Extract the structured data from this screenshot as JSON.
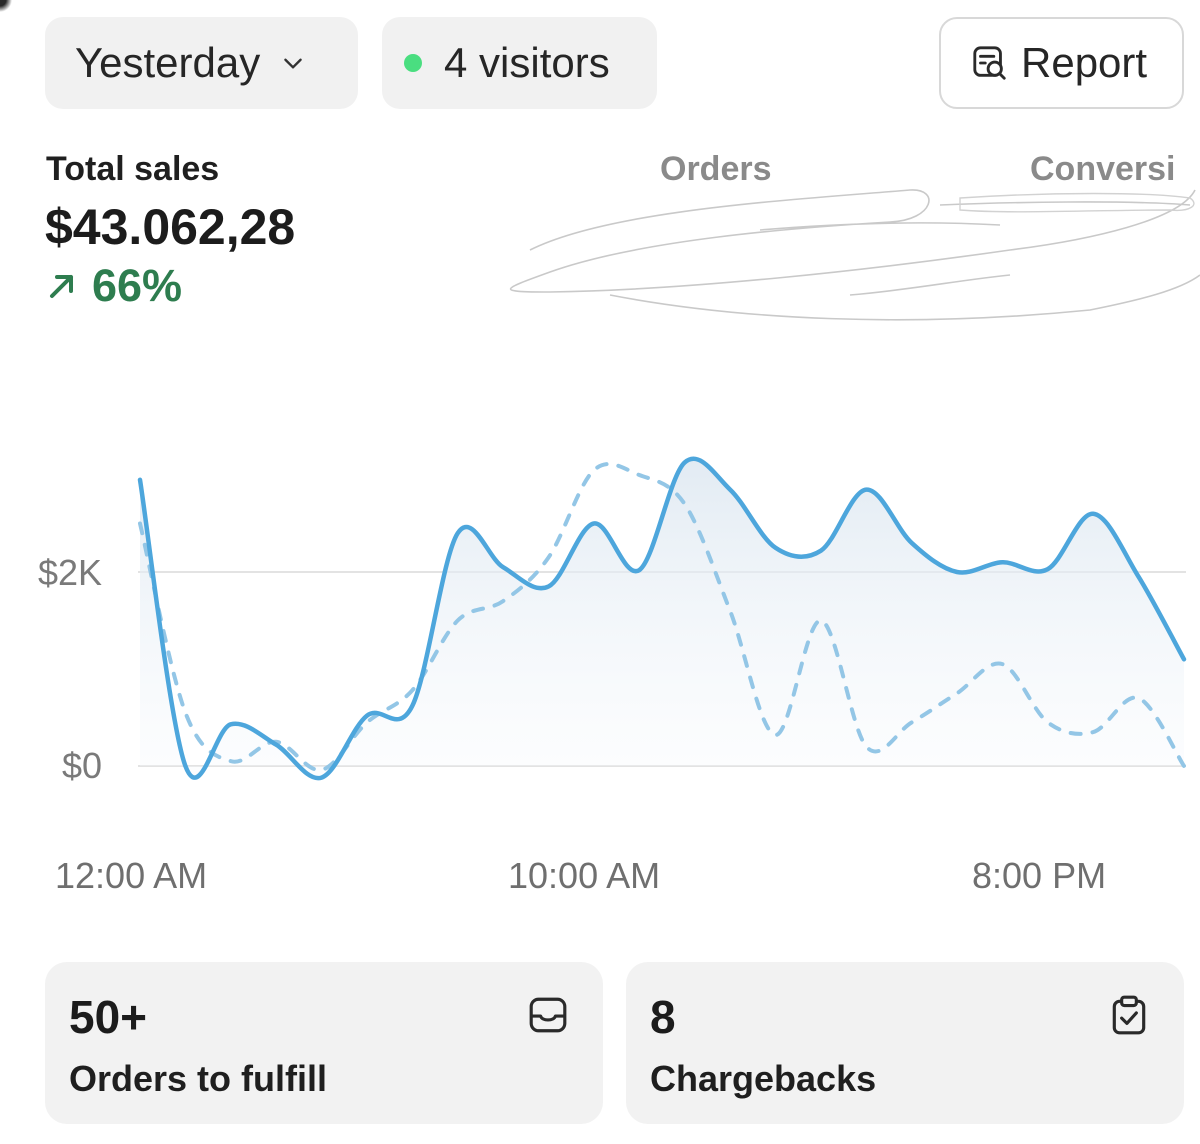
{
  "filters": {
    "date_range": "Yesterday",
    "visitors": "4 visitors",
    "visitors_dot_color": "#4ade80",
    "report_label": "Report"
  },
  "metrics": {
    "total_sales_label": "Total sales",
    "total_sales_value": "$43.062,28",
    "growth": "66%",
    "growth_color": "#2e7d4f",
    "orders_label": "Orders",
    "conversion_label": "Conversi"
  },
  "chart_data": {
    "type": "line",
    "x_ticks": [
      "12:00 AM",
      "10:00 AM",
      "8:00 PM"
    ],
    "y_ticks": [
      "$2K",
      "$0"
    ],
    "ylim": [
      0,
      3000
    ],
    "grid": true,
    "series": [
      {
        "role": "current",
        "color": "#4da6dc",
        "style": "solid",
        "values": [
          2950,
          0,
          430,
          220,
          -120,
          520,
          620,
          2400,
          2050,
          1850,
          2500,
          2020,
          3130,
          2850,
          2250,
          2220,
          2850,
          2300,
          2000,
          2100,
          2030,
          2600,
          1950,
          1100
        ]
      },
      {
        "role": "comparison",
        "color": "#93c6e6",
        "style": "dashed",
        "values": [
          2500,
          550,
          50,
          250,
          -40,
          450,
          780,
          1500,
          1700,
          2150,
          3050,
          3000,
          2700,
          1600,
          320,
          1500,
          200,
          450,
          750,
          1050,
          450,
          350,
          700,
          0
        ]
      }
    ]
  },
  "cards": [
    {
      "value": "50+",
      "label": "Orders to fulfill",
      "icon": "inbox-icon"
    },
    {
      "value": "8",
      "label": "Chargebacks",
      "icon": "clipboard-check-icon"
    }
  ]
}
